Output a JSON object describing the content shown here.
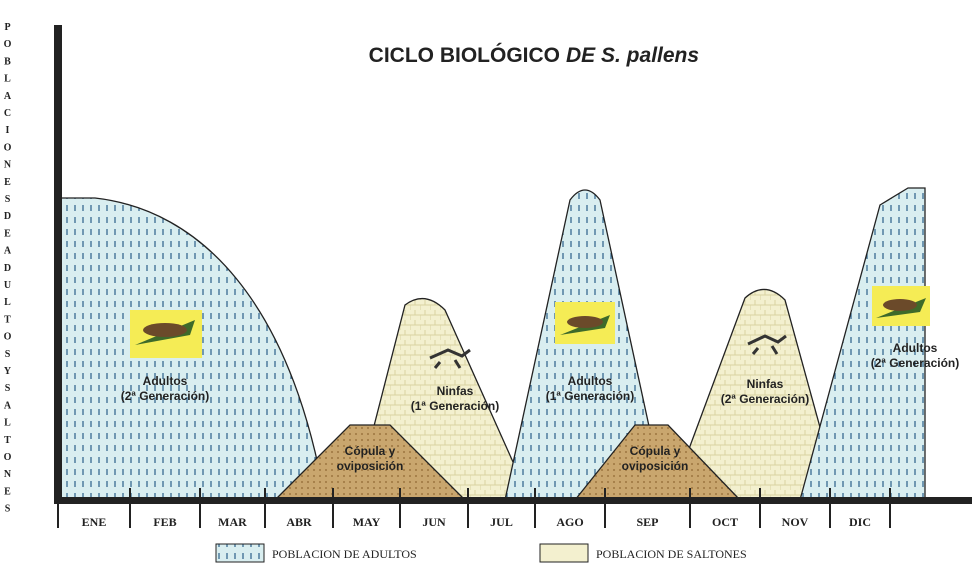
{
  "title": {
    "main": "CICLO BIOLÓGICO",
    "italic": "DE S. pallens"
  },
  "y_axis_label": "POBLACIONESDEADULTOSYSALTONES",
  "months": [
    "ENE",
    "FEB",
    "MAR",
    "ABR",
    "MAY",
    "JUN",
    "JUL",
    "AGO",
    "SEP",
    "OCT",
    "NOV",
    "DIC"
  ],
  "regions": [
    {
      "label": "Adultos",
      "sublabel": "(2ª Generación)"
    },
    {
      "label": "Ninfas",
      "sublabel": "(1ª Generación)"
    },
    {
      "label": "Adultos",
      "sublabel": "(1ª Generación)"
    },
    {
      "label": "Ninfas",
      "sublabel": "(2ª Generación)"
    },
    {
      "label": "Adultos",
      "sublabel": "(2ª Generación)"
    },
    {
      "label": "Cópula y",
      "sublabel": "oviposición"
    },
    {
      "label": "Cópula y",
      "sublabel": "oviposición"
    }
  ],
  "legend": [
    "POBLACION DE ADULTOS",
    "POBLACION DE SALTONES"
  ]
}
